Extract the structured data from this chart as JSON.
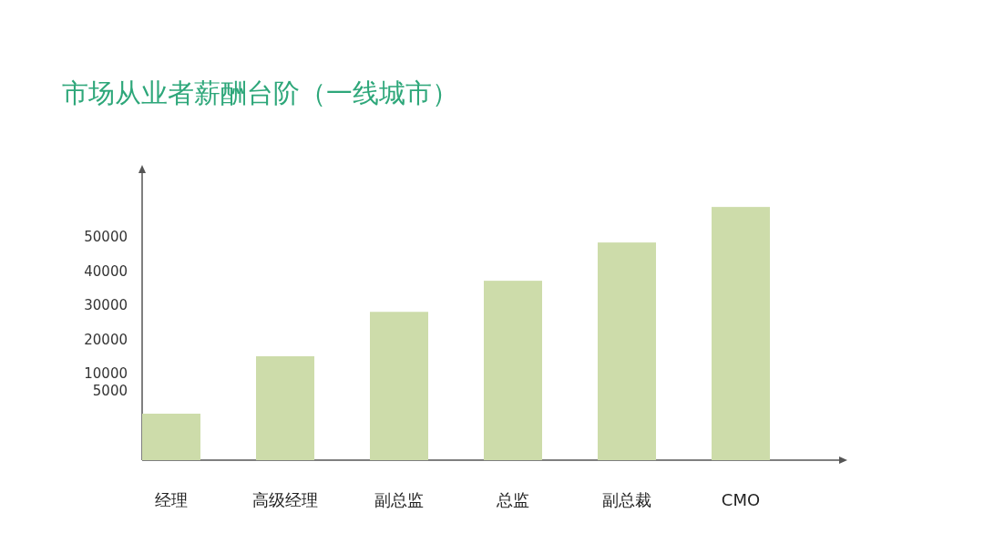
{
  "chart_data": {
    "type": "bar",
    "title": "市场从业者薪酬台阶（一线城市）",
    "categories": [
      "经理",
      "高级经理",
      "副总监",
      "总监",
      "副总裁",
      "CMO"
    ],
    "base": [
      -15300,
      -15300,
      -15300,
      -15300,
      -15300,
      -15300
    ],
    "values": [
      13600,
      30400,
      43400,
      52500,
      63700,
      74100
    ],
    "color": "#cddcaa",
    "ylim": [
      -15300,
      68700
    ],
    "yticks": [
      5000,
      10000,
      20000,
      30000,
      40000,
      50000
    ]
  }
}
